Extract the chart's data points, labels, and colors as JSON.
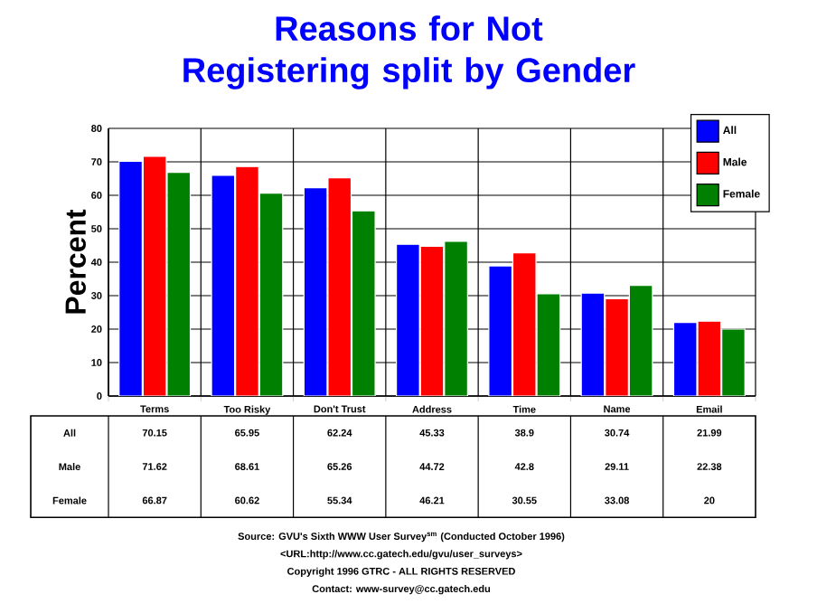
{
  "chart_data": {
    "type": "bar",
    "title": "Reasons for Not Registering split by Gender",
    "ylabel": "Percent",
    "categories": [
      "Terms",
      "Too Risky",
      "Don't Trust",
      "Address",
      "Time",
      "Name",
      "Email"
    ],
    "series": [
      {
        "name": "All",
        "color": "#0000ff",
        "values": [
          70.15,
          65.95,
          62.24,
          45.33,
          38.9,
          30.74,
          21.99
        ],
        "value_labels": [
          "70.15",
          "65.95",
          "62.24",
          "45.33",
          "38.9",
          "30.74",
          "21.99"
        ]
      },
      {
        "name": "Male",
        "color": "#ff0000",
        "values": [
          71.62,
          68.61,
          65.26,
          44.72,
          42.8,
          29.11,
          22.38
        ],
        "value_labels": [
          "71.62",
          "68.61",
          "65.26",
          "44.72",
          "42.8",
          "29.11",
          "22.38"
        ]
      },
      {
        "name": "Female",
        "color": "#008000",
        "values": [
          66.87,
          60.62,
          55.34,
          46.21,
          30.55,
          33.08,
          20
        ],
        "value_labels": [
          "66.87",
          "60.62",
          "55.34",
          "46.21",
          "30.55",
          "33.08",
          "20"
        ]
      }
    ],
    "ylim": [
      0,
      80
    ],
    "yticks": [
      0,
      10,
      20,
      30,
      40,
      50,
      60,
      70,
      80
    ],
    "grid": true,
    "legend": "top right",
    "annotations": [
      "Source: GVU's Sixth WWW User Survey$^{sm}$ (Conducted October 1996)",
      "<URL:http://www.cc.gatech.edu/gvu/user_surveys>",
      "Copyright 1996 GTRC - ALL RIGHTS RESERVED",
      "Contact: www-survey@cc.gatech.edu"
    ]
  }
}
